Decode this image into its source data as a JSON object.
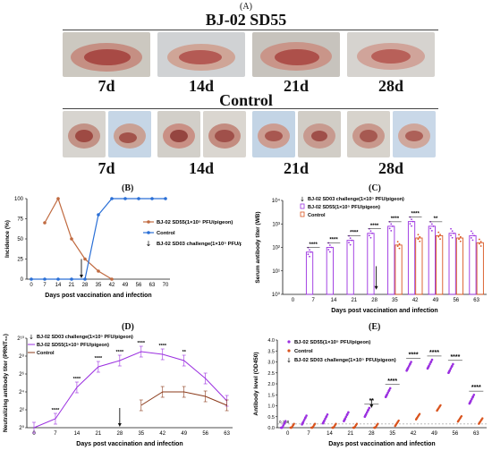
{
  "figure": {
    "panel_a_letter": "(A)",
    "top_group_label": "BJ-02 SD55",
    "top_days": [
      "7d",
      "14d",
      "21d",
      "28d"
    ],
    "bottom_group_label": "Control",
    "bottom_days": [
      "7d",
      "14d",
      "21d",
      "28d"
    ]
  },
  "colors": {
    "sd55": "#8b3a1a",
    "sd55_light": "#c06a40",
    "control": "#2a6fd6",
    "purple": "#9b30e0",
    "orange": "#d9541e",
    "black": "#111111"
  },
  "chart_data": [
    {
      "panel": "(B)",
      "type": "line",
      "ylabel": "Incidence (%)",
      "xlabel": "Days post vaccination and infection",
      "x": [
        0,
        7,
        14,
        21,
        28,
        35,
        42,
        49,
        56,
        63,
        70
      ],
      "ylim": [
        0,
        100
      ],
      "yticks": [
        0,
        25,
        50,
        75,
        100
      ],
      "series": [
        {
          "name": "BJ-02 SD55(1×10⁵ PFU/pigeon)",
          "x": [
            7,
            14,
            21,
            28,
            35,
            42
          ],
          "values": [
            70,
            100,
            50,
            25,
            10,
            0
          ]
        },
        {
          "name": "Control",
          "x": [
            0,
            7,
            14,
            21,
            28,
            35,
            42,
            49,
            56,
            63,
            70
          ],
          "values": [
            0,
            0,
            0,
            0,
            0,
            80,
            100,
            100,
            100,
            100,
            100
          ]
        }
      ],
      "legend": [
        "BJ-02 SD55(1×10⁵ PFU/pigeon)",
        "Control",
        "BJ-02 SD03 challenge(1×10⁵ PFU/pigeon)"
      ],
      "arrow_at": 28
    },
    {
      "panel": "(C)",
      "type": "bar",
      "ylabel": "Serum antibody titer (WB)",
      "xlabel": "Days post vaccination and infection",
      "categories": [
        "0",
        "7",
        "14",
        "21",
        "28",
        "35",
        "42",
        "49",
        "56",
        "63"
      ],
      "ytick_labels": [
        "10⁰",
        "10¹",
        "10²",
        "10³",
        "10⁴"
      ],
      "ylim_log": [
        0,
        4
      ],
      "series": [
        {
          "name": "BJ-02 SD55(1×10⁵ PFU/pigeon)",
          "values": [
            0,
            1.8,
            2.0,
            2.3,
            2.6,
            2.9,
            3.1,
            2.9,
            2.6,
            2.5
          ]
        },
        {
          "name": "Control",
          "values": [
            0,
            0,
            0,
            0,
            0,
            2.1,
            2.4,
            2.5,
            2.4,
            2.2
          ]
        }
      ],
      "legend": [
        "BJ-02 SD03 challenge(1×10⁵ PFU/pigeon)",
        "BJ-02 SD55(1×10⁵ PFU/pigeon)",
        "Control"
      ],
      "significance": [
        "",
        "****",
        "****",
        "****",
        "****",
        "****",
        "****",
        "**",
        "",
        ""
      ]
    },
    {
      "panel": "(D)",
      "type": "line",
      "ylabel": "Neutralizing antibody titer (PRNT₅₀)",
      "xlabel": "Days post vaccination and infection",
      "x": [
        0,
        7,
        14,
        21,
        28,
        35,
        42,
        49,
        56,
        63
      ],
      "ytick_labels": [
        "2⁰",
        "2²",
        "2⁴",
        "2⁶",
        "2⁸",
        "2¹⁰"
      ],
      "ylim_log2": [
        0,
        10
      ],
      "series": [
        {
          "name": "BJ-02 SD55(1×10⁵ PFU/pigeon)",
          "values": [
            0,
            1,
            4.5,
            6.8,
            7.5,
            8.5,
            8.2,
            7.5,
            5.5,
            3
          ]
        },
        {
          "name": "Control",
          "values": [
            0,
            0,
            0,
            0,
            0,
            2.5,
            4,
            4,
            3.5,
            2.5
          ]
        }
      ],
      "legend": [
        "BJ-02 SD03 challenge(1×10⁵ PFU/pigeon)",
        "BJ-02 SD55(1×10⁵ PFU/pigeon)",
        "Control"
      ],
      "significance": [
        "",
        "****",
        "****",
        "****",
        "****",
        "****",
        "****",
        "**",
        "",
        ""
      ]
    },
    {
      "panel": "(E)",
      "type": "scatter",
      "ylabel": "Antibody level (OD450)",
      "xlabel": "Days post vaccination and infection",
      "categories": [
        "0",
        "7",
        "14",
        "21",
        "28",
        "35",
        "42",
        "49",
        "56",
        "63"
      ],
      "ylim": [
        0,
        4.0
      ],
      "yticks": [
        0,
        0.5,
        1.0,
        1.5,
        2.0,
        2.5,
        3.0,
        3.5,
        4.0
      ],
      "cutoff_label": "0.168",
      "series": [
        {
          "name": "BJ-02 SD55(1×10⁵ PFU/pigeon)",
          "values": [
            0.1,
            0.35,
            0.4,
            0.5,
            0.7,
            1.6,
            2.8,
            2.9,
            2.7,
            1.3
          ]
        },
        {
          "name": "Control",
          "values": [
            0.05,
            0.05,
            0.05,
            0.05,
            0.05,
            0.2,
            0.5,
            0.9,
            0.4,
            0.3
          ]
        }
      ],
      "legend": [
        "BJ-02 SD55(1×10⁵ PFU/pigeon)",
        "Control",
        "BJ-02 SD03 challenge(1×10⁵ PFU/pigeon)"
      ],
      "significance": [
        "",
        "",
        "",
        "",
        "**",
        "****",
        "****",
        "****",
        "****",
        "****"
      ]
    }
  ]
}
